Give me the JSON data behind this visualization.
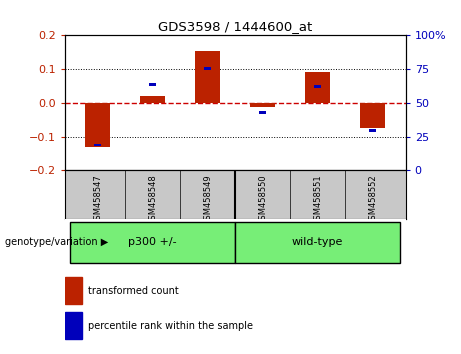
{
  "title": "GDS3598 / 1444600_at",
  "samples": [
    "GSM458547",
    "GSM458548",
    "GSM458549",
    "GSM458550",
    "GSM458551",
    "GSM458552"
  ],
  "red_values": [
    -0.13,
    0.02,
    0.155,
    -0.012,
    0.093,
    -0.075
  ],
  "blue_positions": [
    -0.125,
    0.055,
    0.102,
    -0.028,
    0.048,
    -0.082
  ],
  "ylim": [
    -0.2,
    0.2
  ],
  "yticks_left": [
    -0.2,
    -0.1,
    0.0,
    0.1,
    0.2
  ],
  "yticks_right": [
    0,
    25,
    50,
    75,
    100
  ],
  "yticks_right_pos": [
    -0.2,
    -0.1,
    0.0,
    0.1,
    0.2
  ],
  "group_label": "genotype/variation",
  "group1_label": "p300 +/-",
  "group2_label": "wild-type",
  "legend_red": "transformed count",
  "legend_blue": "percentile rank within the sample",
  "bar_color_red": "#BB2200",
  "bar_color_blue": "#0000BB",
  "bg_color_label": "#C8C8C8",
  "bg_color_group": "#77EE77",
  "zero_line_color": "#CC0000",
  "bar_width": 0.45,
  "blue_square_size": 0.008,
  "blue_bar_width": 0.13
}
